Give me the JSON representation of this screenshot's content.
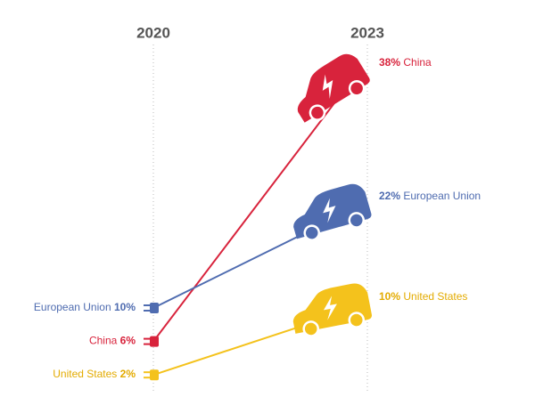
{
  "chart_data": {
    "type": "slope",
    "x": [
      "2020",
      "2023"
    ],
    "series": [
      {
        "name": "China",
        "color": "#d8233c",
        "values": [
          6,
          38
        ],
        "value_labels": [
          "6%",
          "38%"
        ]
      },
      {
        "name": "European Union",
        "color": "#4f6cb0",
        "values": [
          10,
          22
        ],
        "value_labels": [
          "10%",
          "22%"
        ]
      },
      {
        "name": "United States",
        "color": "#f4c21c",
        "values": [
          2,
          10
        ],
        "value_labels": [
          "2%",
          "10%"
        ]
      }
    ]
  }
}
